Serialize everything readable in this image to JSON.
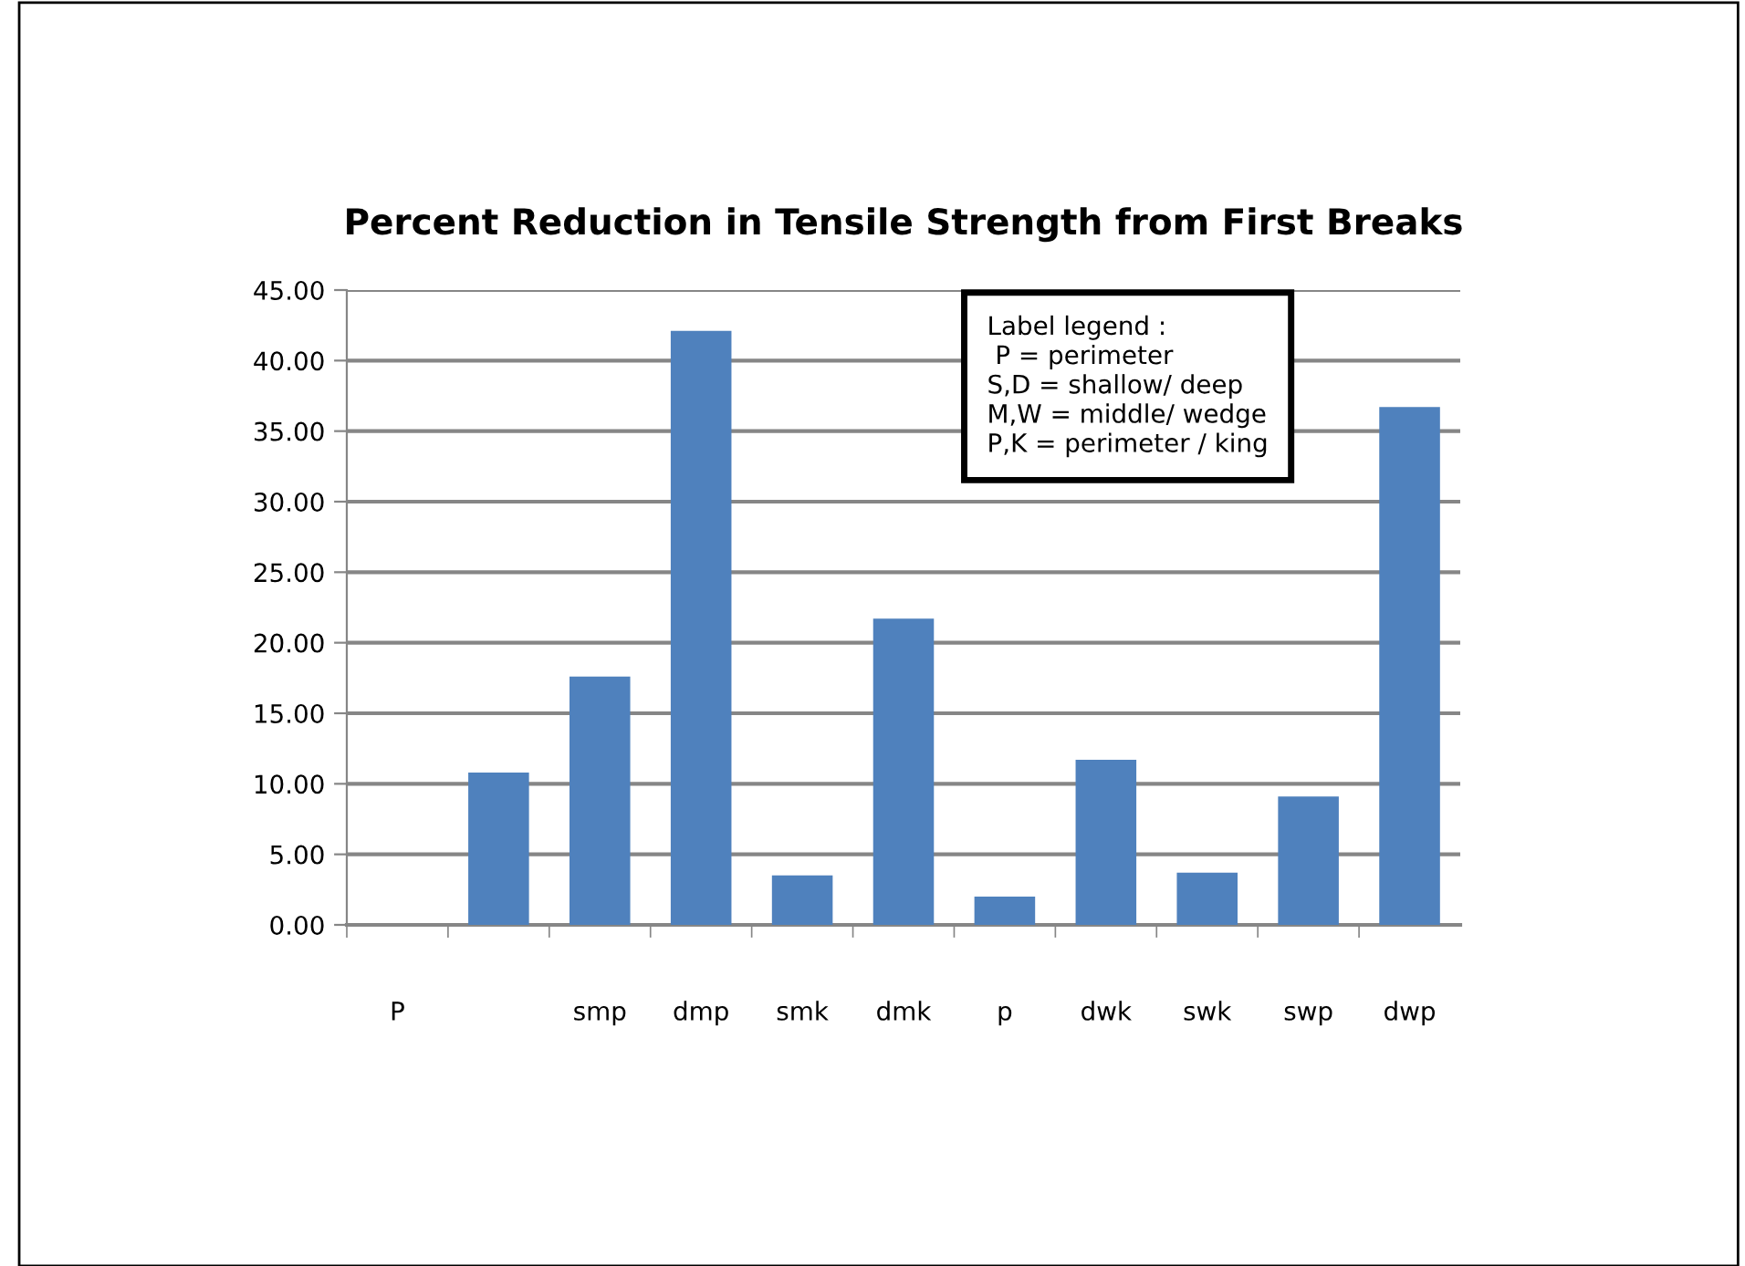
{
  "chart_data": {
    "type": "bar",
    "title": "Percent Reduction in Tensile Strength from First Breaks",
    "categories": [
      "P",
      null,
      "smp",
      "dmp",
      "smk",
      "dmk",
      "p",
      "dwk",
      "swk",
      "swp",
      "dwp"
    ],
    "values": [
      null,
      10.8,
      17.6,
      42.1,
      3.5,
      21.7,
      2.0,
      11.7,
      3.7,
      9.1,
      36.7
    ],
    "color": "#4f81bd",
    "ylim": [
      0,
      45
    ],
    "yticks": [
      {
        "value": 0,
        "label": "0.00"
      },
      {
        "value": 5,
        "label": "5.00"
      },
      {
        "value": 10,
        "label": "10.00"
      },
      {
        "value": 15,
        "label": "15.00"
      },
      {
        "value": 20,
        "label": "20.00"
      },
      {
        "value": 25,
        "label": "25.00"
      },
      {
        "value": 30,
        "label": "30.00"
      },
      {
        "value": 35,
        "label": "35.00"
      },
      {
        "value": 40,
        "label": "40.00"
      },
      {
        "value": 45,
        "label": "45.00"
      }
    ],
    "grid": "y",
    "annotations": [
      "Label legend :\n P = perimeter\nS,D = shallow/ deep\nM,W = middle/ wedge\nP,K = perimeter / king"
    ]
  }
}
